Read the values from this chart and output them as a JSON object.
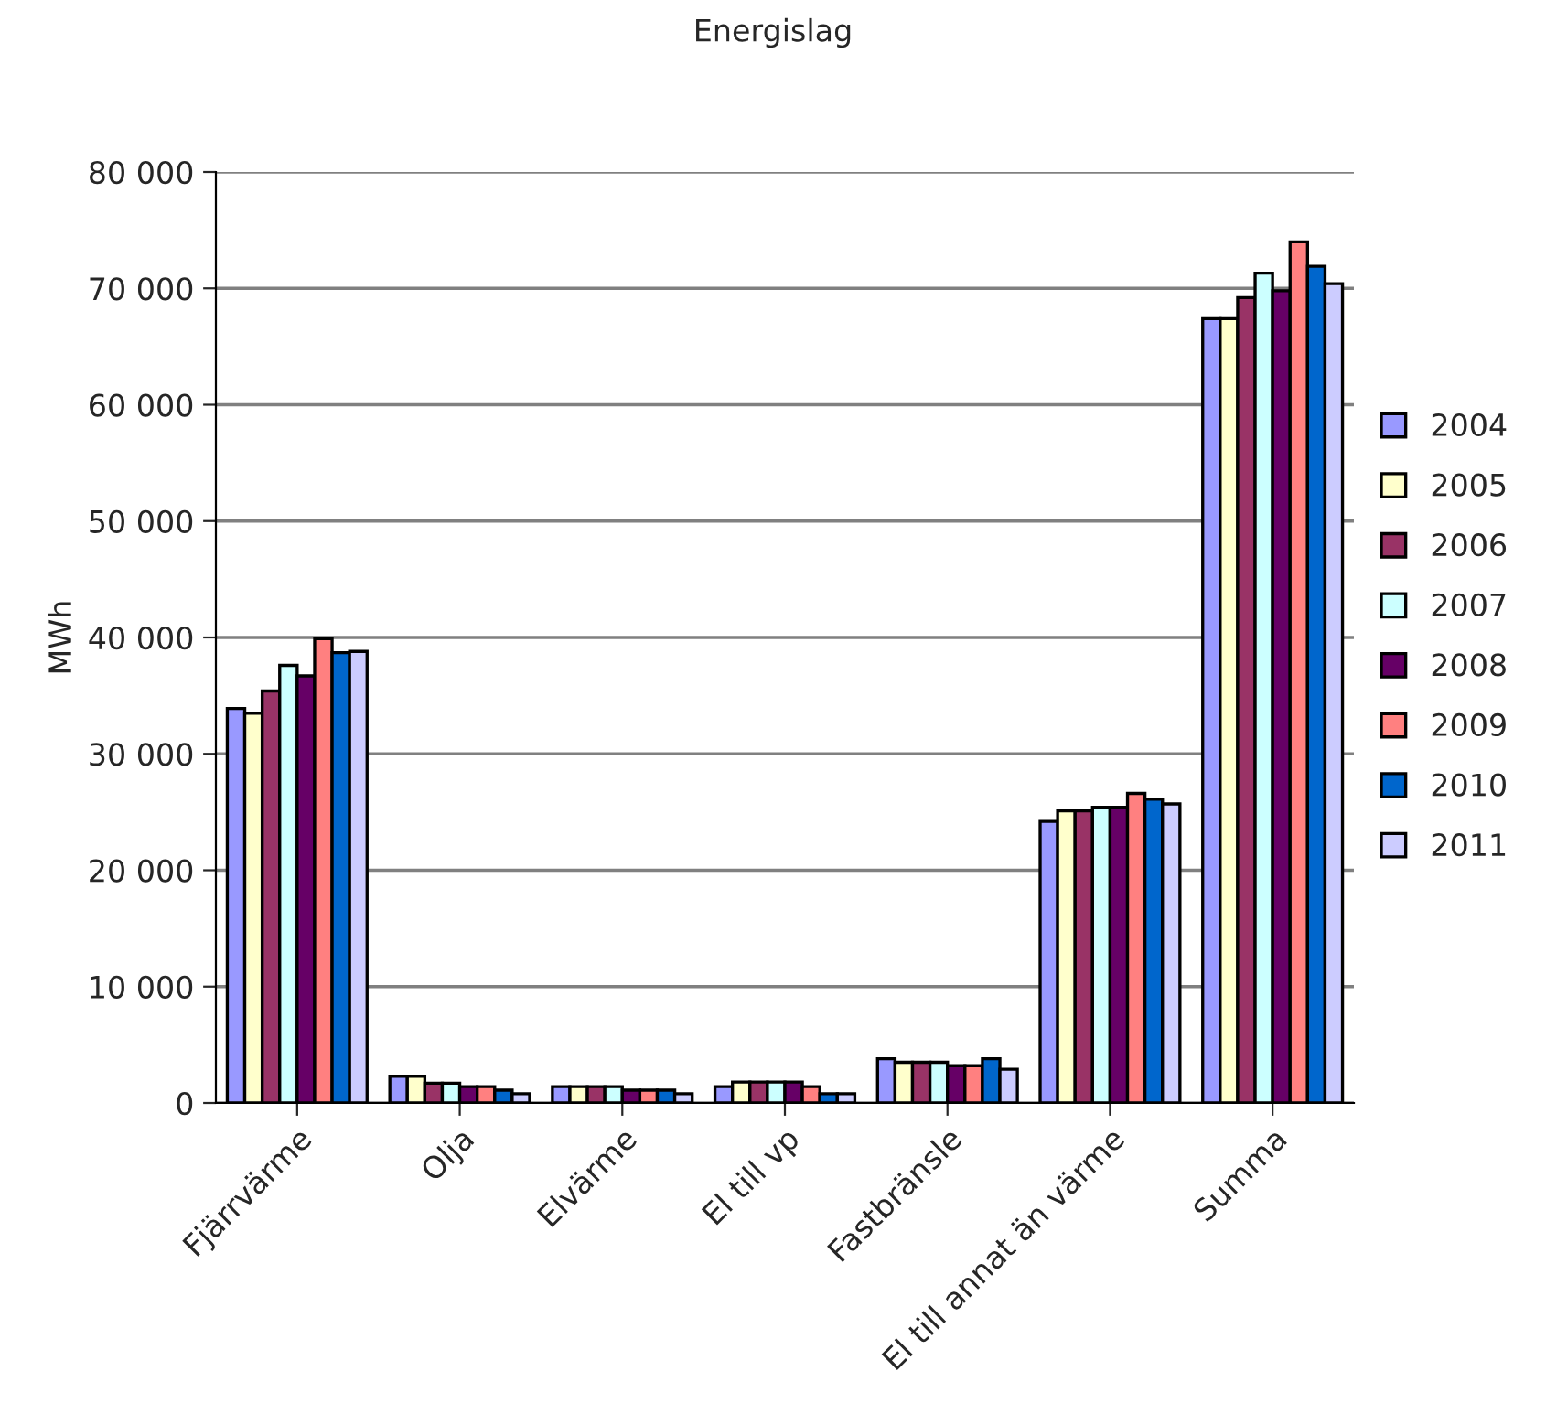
{
  "chart_data": {
    "type": "bar",
    "title": "Energislag",
    "ylabel": "MWh",
    "categories": [
      "Fjärrvärme",
      "Olja",
      "Elvärme",
      "El till vp",
      "Fastbränsle",
      "El till annat än värme",
      "Summa"
    ],
    "series": [
      {
        "name": "2004",
        "color": "#9999ff",
        "values": [
          33900,
          2300,
          1400,
          1400,
          3800,
          24200,
          67400
        ]
      },
      {
        "name": "2005",
        "color": "#ffffcc",
        "values": [
          33500,
          2300,
          1400,
          1800,
          3500,
          25100,
          67400
        ]
      },
      {
        "name": "2006",
        "color": "#993366",
        "values": [
          35400,
          1700,
          1400,
          1800,
          3500,
          25100,
          69200
        ]
      },
      {
        "name": "2007",
        "color": "#ccffff",
        "values": [
          37600,
          1700,
          1400,
          1800,
          3500,
          25400,
          71300
        ]
      },
      {
        "name": "2008",
        "color": "#660066",
        "values": [
          36700,
          1400,
          1100,
          1800,
          3200,
          25400,
          69800
        ]
      },
      {
        "name": "2009",
        "color": "#ff8080",
        "values": [
          39900,
          1400,
          1100,
          1400,
          3200,
          26600,
          74000
        ]
      },
      {
        "name": "2010",
        "color": "#0066cc",
        "values": [
          38700,
          1100,
          1100,
          800,
          3800,
          26100,
          71900
        ]
      },
      {
        "name": "2011",
        "color": "#ccccff",
        "values": [
          38800,
          800,
          800,
          800,
          2900,
          25700,
          70400
        ]
      }
    ],
    "ylim": [
      0,
      80000
    ],
    "yticks": [
      0,
      {
        "value": 10000,
        "label": "10 000"
      },
      {
        "value": 20000,
        "label": "20 000"
      },
      {
        "value": 30000,
        "label": "30 000"
      },
      {
        "value": 40000,
        "label": "40 000"
      },
      {
        "value": 50000,
        "label": "50 000"
      },
      {
        "value": 60000,
        "label": "60 000"
      },
      {
        "value": 70000,
        "label": "70 000"
      },
      {
        "value": 80000,
        "label": "80 000"
      }
    ],
    "grid": "y",
    "legend": "right"
  }
}
